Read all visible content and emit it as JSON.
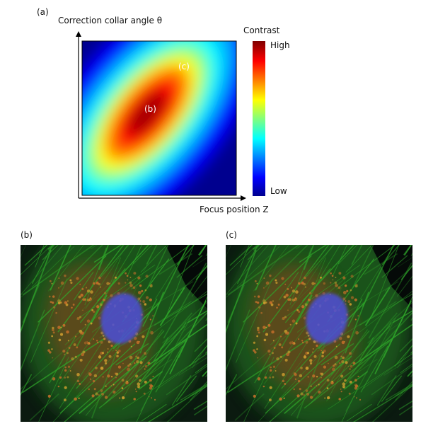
{
  "panel_a": {
    "label": "(a)",
    "y_axis_label": "Correction collar angle θ",
    "x_axis_label": "Focus position Z",
    "colorbar": {
      "title": "Contrast",
      "high_label": "High",
      "low_label": "Low",
      "colormap": "jet"
    },
    "markers": [
      {
        "label": "(b)"
      },
      {
        "label": "(c)"
      }
    ]
  },
  "panel_b": {
    "label": "(b)"
  },
  "panel_c": {
    "label": "(c)"
  },
  "colors": {
    "nucleus": "#4b4fd8",
    "actin": "#2fa82a",
    "mito": "#c8702a",
    "background": "#0b1a10"
  }
}
